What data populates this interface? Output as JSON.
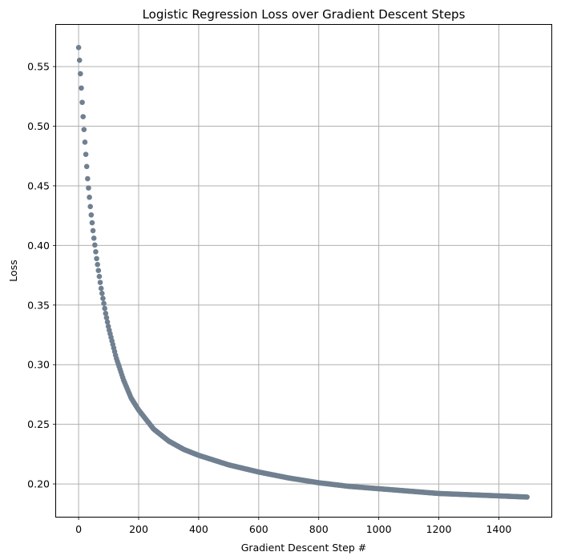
{
  "chart_data": {
    "type": "scatter",
    "title": "Logistic Regression Loss over Gradient Descent Steps",
    "xlabel": "Gradient Descent Step #",
    "ylabel": "Loss",
    "xlim": [
      -75,
      1575
    ],
    "ylim": [
      0.1725,
      0.585
    ],
    "xticks": [
      0,
      200,
      400,
      600,
      800,
      1000,
      1200,
      1400
    ],
    "xtick_labels": [
      "0",
      "200",
      "400",
      "600",
      "800",
      "1000",
      "1200",
      "1400"
    ],
    "yticks": [
      0.2,
      0.25,
      0.3,
      0.35,
      0.4,
      0.45,
      0.5,
      0.55
    ],
    "ytick_labels": [
      "0.20",
      "0.25",
      "0.30",
      "0.35",
      "0.40",
      "0.45",
      "0.50",
      "0.55"
    ],
    "grid": true,
    "marker_color": "#708090",
    "series": [
      {
        "x": [
          0,
          2,
          5,
          10,
          15,
          20,
          25,
          30,
          40,
          50,
          60,
          75,
          90,
          100,
          125,
          150,
          175,
          200,
          250,
          300,
          350,
          400,
          450,
          500,
          550,
          600,
          700,
          800,
          900,
          1000,
          1100,
          1200,
          1300,
          1400,
          1495
        ],
        "y": [
          0.566,
          0.559,
          0.548,
          0.528,
          0.508,
          0.49,
          0.473,
          0.456,
          0.43,
          0.408,
          0.389,
          0.364,
          0.343,
          0.331,
          0.306,
          0.287,
          0.272,
          0.262,
          0.246,
          0.236,
          0.229,
          0.224,
          0.22,
          0.216,
          0.213,
          0.21,
          0.205,
          0.201,
          0.198,
          0.196,
          0.194,
          0.192,
          0.191,
          0.19,
          0.189
        ]
      }
    ]
  }
}
